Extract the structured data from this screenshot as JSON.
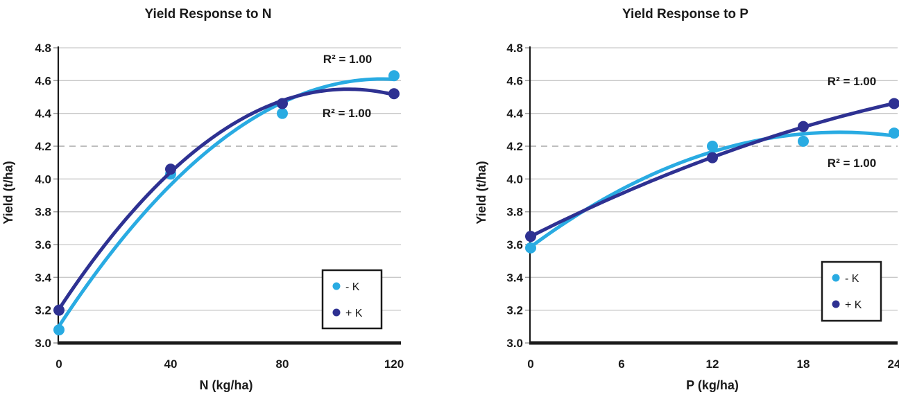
{
  "page": {
    "background": "#FFFFFF"
  },
  "colors": {
    "minus_k": "#29ABE2",
    "plus_k": "#2E3192",
    "grid": "#C9C9C9",
    "dashed_grid": "#A8A8A8",
    "axis": "#1A1A1A",
    "text": "#1A1A1A",
    "tick_mark": "#9B9B9B",
    "legend_border": "#1A1A1A",
    "legend_fill": "#FFFFFF"
  },
  "chart_data": [
    {
      "id": "yield-response-n-chart",
      "type": "scatter",
      "title": "Yield Response to N",
      "xlabel": "N (kg/ha)",
      "ylabel": "Yield (t/ha)",
      "xlim": [
        0,
        120
      ],
      "ylim": [
        3.0,
        4.8
      ],
      "x_ticks": [
        0,
        40,
        80,
        120
      ],
      "y_ticks": [
        3.0,
        3.2,
        3.4,
        3.6,
        3.8,
        4.0,
        4.2,
        4.4,
        4.6,
        4.8
      ],
      "grid": true,
      "dashed_reference_line_y": 4.2,
      "trendline": "quadratic",
      "legend_position": "lower-right",
      "series": [
        {
          "name": "- K",
          "color_key": "minus_k",
          "x": [
            0,
            40,
            80,
            120
          ],
          "y": [
            3.08,
            4.03,
            4.4,
            4.63
          ]
        },
        {
          "name": "+ K",
          "color_key": "plus_k",
          "x": [
            0,
            40,
            80,
            120
          ],
          "y": [
            3.2,
            4.06,
            4.46,
            4.52
          ]
        }
      ],
      "annotations": [
        {
          "text": "R² = 1.00",
          "series": "- K"
        },
        {
          "text": "R² = 1.00",
          "series": "+ K"
        }
      ]
    },
    {
      "id": "yield-response-p-chart",
      "type": "scatter",
      "title": "Yield Response to P",
      "xlabel": "P (kg/ha)",
      "ylabel": "Yield (t/ha)",
      "xlim": [
        0,
        24
      ],
      "ylim": [
        3.0,
        4.8
      ],
      "x_ticks": [
        0,
        6,
        12,
        18,
        24
      ],
      "y_ticks": [
        3.0,
        3.2,
        3.4,
        3.6,
        3.8,
        4.0,
        4.2,
        4.4,
        4.6,
        4.8
      ],
      "grid": true,
      "dashed_reference_line_y": 4.2,
      "trendline": "quadratic",
      "legend_position": "lower-right",
      "series": [
        {
          "name": "- K",
          "color_key": "minus_k",
          "x": [
            0,
            12,
            18,
            24
          ],
          "y": [
            3.58,
            4.2,
            4.23,
            4.28
          ]
        },
        {
          "name": "+ K",
          "color_key": "plus_k",
          "x": [
            0,
            12,
            18,
            24
          ],
          "y": [
            3.65,
            4.13,
            4.32,
            4.46
          ]
        }
      ],
      "annotations": [
        {
          "text": "R² = 1.00",
          "series": "+ K"
        },
        {
          "text": "R² = 1.00",
          "series": "- K"
        }
      ]
    }
  ]
}
